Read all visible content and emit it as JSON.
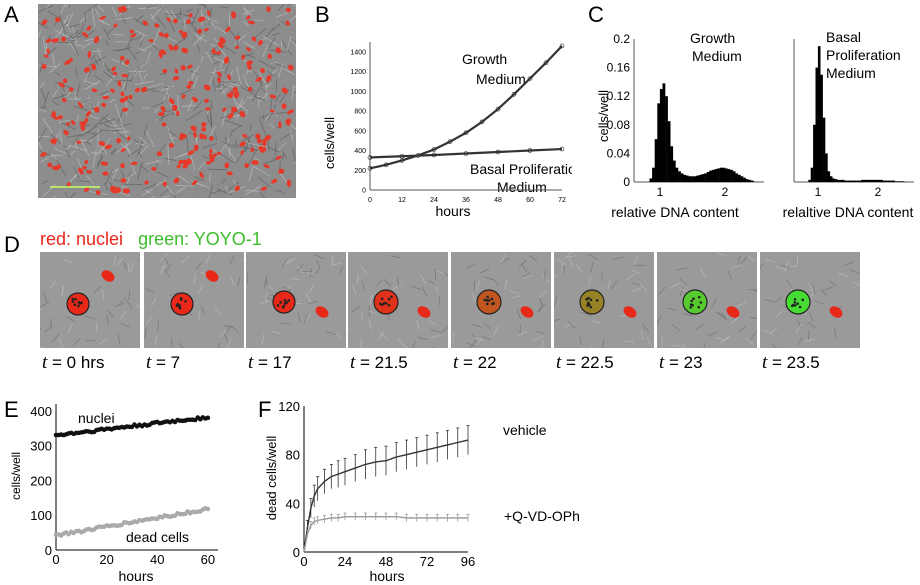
{
  "panels": {
    "A": "A",
    "B": "B",
    "C": "C",
    "D": "D",
    "E": "E",
    "F": "F"
  },
  "colors": {
    "nuclei": "#e53a2a",
    "yoyo": "#3fc23a",
    "grey_series": "#aaaaaa"
  },
  "panelB": {
    "chart_data": {
      "type": "line",
      "ylabel": "cells/well",
      "xlabel": "hours",
      "x_ticks": [
        "0",
        "12",
        "24",
        "36",
        "48",
        "60",
        "72"
      ],
      "y_ticks": [
        "0",
        "200",
        "400",
        "600",
        "800",
        "1000",
        "1200",
        "1400"
      ],
      "xlim": [
        0,
        72
      ],
      "ylim": [
        0,
        1500
      ],
      "series": [
        {
          "name": "Growth Medium",
          "label_line1": "Growth",
          "label_line2": "Medium",
          "x": [
            0,
            6,
            12,
            18,
            24,
            30,
            36,
            42,
            48,
            54,
            60,
            66,
            72
          ],
          "values": [
            220,
            255,
            300,
            350,
            410,
            490,
            580,
            690,
            820,
            970,
            1130,
            1290,
            1460
          ]
        },
        {
          "name": "Basal Proliferation Medium",
          "label_line1": "Basal Proliferation",
          "label_line2": "Medium",
          "x": [
            0,
            12,
            24,
            36,
            48,
            60,
            72
          ],
          "values": [
            330,
            342,
            355,
            370,
            385,
            400,
            415
          ]
        }
      ]
    }
  },
  "panelC": {
    "chart_data": [
      {
        "type": "bar",
        "title_line1": "Growth",
        "title_line2": "Medium",
        "ylabel": "cells/well",
        "xlabel": "relative DNA content",
        "y_ticks": [
          "0",
          "0.04",
          "0.08",
          "0.12",
          "0.16",
          "0.2"
        ],
        "ylim": [
          0,
          0.2
        ],
        "x_ticks": [
          "1",
          "2"
        ],
        "xlim": [
          0.6,
          2.6
        ],
        "x": [
          0.86,
          0.9,
          0.94,
          0.98,
          1.02,
          1.06,
          1.1,
          1.14,
          1.18,
          1.22,
          1.26,
          1.3,
          1.34,
          1.38,
          1.42,
          1.46,
          1.5,
          1.54,
          1.58,
          1.62,
          1.66,
          1.7,
          1.74,
          1.78,
          1.82,
          1.86,
          1.9,
          1.94,
          1.98,
          2.02,
          2.06,
          2.1,
          2.14,
          2.18,
          2.22,
          2.26,
          2.3,
          2.34,
          2.38,
          2.42
        ],
        "values": [
          0.005,
          0.02,
          0.06,
          0.11,
          0.13,
          0.138,
          0.12,
          0.085,
          0.05,
          0.03,
          0.02,
          0.015,
          0.012,
          0.01,
          0.009,
          0.008,
          0.008,
          0.008,
          0.009,
          0.01,
          0.011,
          0.012,
          0.014,
          0.016,
          0.017,
          0.018,
          0.019,
          0.02,
          0.02,
          0.019,
          0.018,
          0.017,
          0.015,
          0.012,
          0.01,
          0.008,
          0.006,
          0.004,
          0.003,
          0.002
        ]
      },
      {
        "type": "bar",
        "title_line1": "Basal",
        "title_line2": "Proliferation",
        "title_line3": "Medium",
        "xlabel": "relaltive DNA content",
        "x_ticks": [
          "1",
          "2"
        ],
        "xlim": [
          0.6,
          2.6
        ],
        "ylim": [
          0,
          0.2
        ],
        "x": [
          0.86,
          0.9,
          0.94,
          0.98,
          1.02,
          1.06,
          1.1,
          1.14,
          1.18,
          1.22,
          1.26,
          1.3,
          1.34,
          1.38,
          1.42,
          1.46,
          1.5,
          1.54,
          1.58,
          1.62,
          1.66,
          1.7,
          1.74,
          1.78,
          1.82,
          1.86,
          1.9,
          1.94,
          1.98,
          2.02,
          2.06,
          2.1,
          2.14,
          2.18,
          2.22,
          2.26,
          2.3,
          2.34,
          2.38,
          2.42
        ],
        "values": [
          0.003,
          0.02,
          0.08,
          0.16,
          0.19,
          0.15,
          0.09,
          0.04,
          0.015,
          0.008,
          0.005,
          0.004,
          0.003,
          0.003,
          0.003,
          0.002,
          0.002,
          0.002,
          0.002,
          0.002,
          0.002,
          0.002,
          0.003,
          0.003,
          0.003,
          0.003,
          0.003,
          0.003,
          0.003,
          0.003,
          0.003,
          0.002,
          0.002,
          0.002,
          0.002,
          0.002,
          0.001,
          0.001,
          0.001,
          0.001
        ]
      }
    ]
  },
  "panelD": {
    "legend_red": "red: nuclei",
    "legend_green": "green: YOYO-1",
    "frames": [
      {
        "t": "t",
        "eq": " = 0 hrs",
        "mix": 0
      },
      {
        "t": "t",
        "eq": " = 7",
        "mix": 0
      },
      {
        "t": "t",
        "eq": " = 17",
        "mix": 0
      },
      {
        "t": "t",
        "eq": " = 21.5",
        "mix": 0.05
      },
      {
        "t": "t",
        "eq": " = 22",
        "mix": 0.25
      },
      {
        "t": "t",
        "eq": " = 22.5",
        "mix": 0.5
      },
      {
        "t": "t",
        "eq": " = 23",
        "mix": 0.9
      },
      {
        "t": "t",
        "eq": " = 23.5",
        "mix": 1
      }
    ]
  },
  "panelE": {
    "chart_data": {
      "type": "scatter",
      "ylabel": "cells/well",
      "xlabel": "hours",
      "x_ticks": [
        "0",
        "20",
        "40",
        "60"
      ],
      "y_ticks": [
        "0",
        "100",
        "200",
        "300",
        "400"
      ],
      "xlim": [
        0,
        64
      ],
      "ylim": [
        0,
        420
      ],
      "series": [
        {
          "name": "nuclei",
          "start": 330,
          "end": 382
        },
        {
          "name": "dead cells",
          "start": 42,
          "end": 118
        }
      ]
    }
  },
  "panelF": {
    "chart_data": {
      "type": "line",
      "ylabel": "dead cells/well",
      "xlabel": "hours",
      "x_ticks": [
        "0",
        "24",
        "48",
        "72",
        "96"
      ],
      "y_ticks": [
        "0",
        "40",
        "80",
        "120"
      ],
      "xlim": [
        0,
        96
      ],
      "ylim": [
        0,
        120
      ],
      "series": [
        {
          "name": "vehicle",
          "x": [
            0,
            2,
            4,
            6,
            8,
            12,
            16,
            20,
            24,
            30,
            36,
            42,
            48,
            54,
            60,
            66,
            72,
            78,
            84,
            90,
            96
          ],
          "values": [
            0,
            20,
            36,
            46,
            52,
            58,
            62,
            64,
            66,
            69,
            72,
            74,
            75,
            78,
            80,
            82,
            84,
            86,
            88,
            90,
            92
          ],
          "err": [
            0,
            6,
            8,
            9,
            10,
            10,
            10,
            11,
            11,
            11,
            12,
            12,
            12,
            12,
            12,
            12,
            12,
            12,
            12,
            12,
            12
          ]
        },
        {
          "name": "+Q-VD-OPh",
          "x": [
            0,
            2,
            4,
            6,
            8,
            12,
            16,
            20,
            24,
            30,
            36,
            42,
            48,
            54,
            60,
            66,
            72,
            78,
            84,
            90,
            96
          ],
          "values": [
            0,
            15,
            22,
            25,
            26,
            27,
            28,
            28,
            29,
            29,
            29,
            29,
            29,
            29,
            28,
            28,
            28,
            28,
            28,
            28,
            28
          ],
          "err": [
            0,
            3,
            3,
            3,
            3,
            3,
            3,
            3,
            3,
            3,
            3,
            3,
            3,
            3,
            3,
            3,
            3,
            3,
            3,
            3,
            3
          ]
        }
      ]
    }
  }
}
